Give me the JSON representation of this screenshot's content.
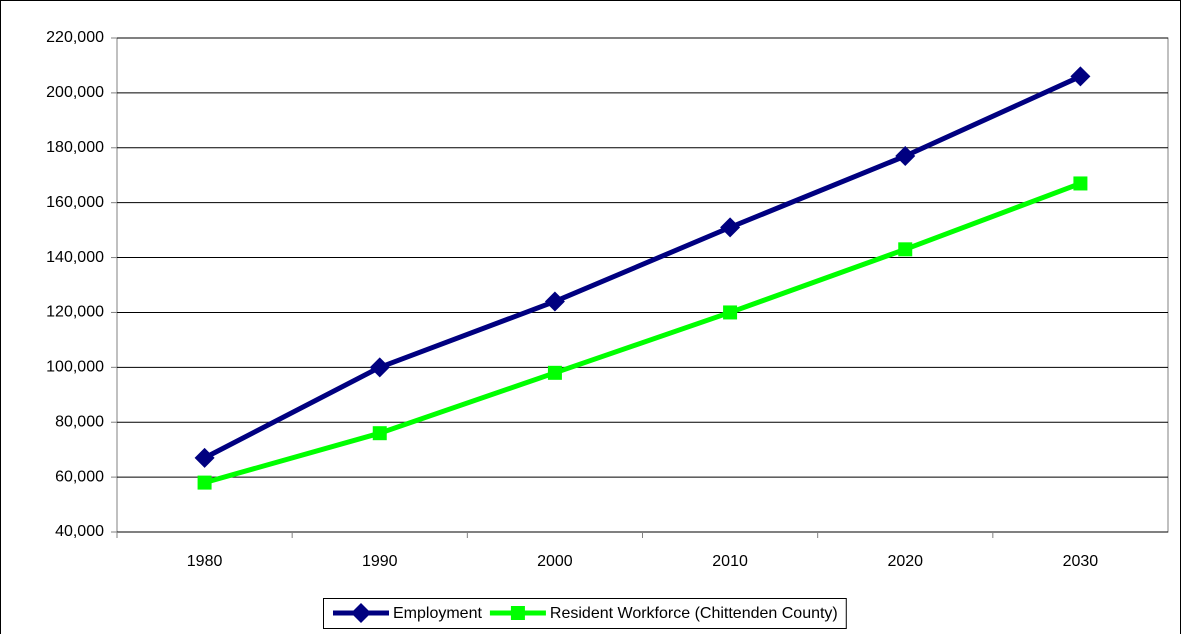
{
  "chart_data": {
    "type": "line",
    "categories": [
      "1980",
      "1990",
      "2000",
      "2010",
      "2020",
      "2030"
    ],
    "series": [
      {
        "name": "Employment",
        "color": "#000080",
        "marker": "diamond",
        "values": [
          67000,
          100000,
          124000,
          151000,
          177000,
          206000
        ]
      },
      {
        "name": "Resident Workforce (Chittenden County)",
        "color": "#00ff00",
        "marker": "square",
        "values": [
          58000,
          76000,
          98000,
          120000,
          143000,
          167000
        ]
      }
    ],
    "ylim": [
      40000,
      220000
    ],
    "yticks": [
      {
        "value": 40000,
        "label": "40,000"
      },
      {
        "value": 60000,
        "label": "60,000"
      },
      {
        "value": 80000,
        "label": "80,000"
      },
      {
        "value": 100000,
        "label": "100,000"
      },
      {
        "value": 120000,
        "label": "120,000"
      },
      {
        "value": 140000,
        "label": "140,000"
      },
      {
        "value": 160000,
        "label": "160,000"
      },
      {
        "value": 180000,
        "label": "180,000"
      },
      {
        "value": 200000,
        "label": "200,000"
      },
      {
        "value": 220000,
        "label": "220,000"
      }
    ],
    "grid": true,
    "legend": "bottom"
  }
}
